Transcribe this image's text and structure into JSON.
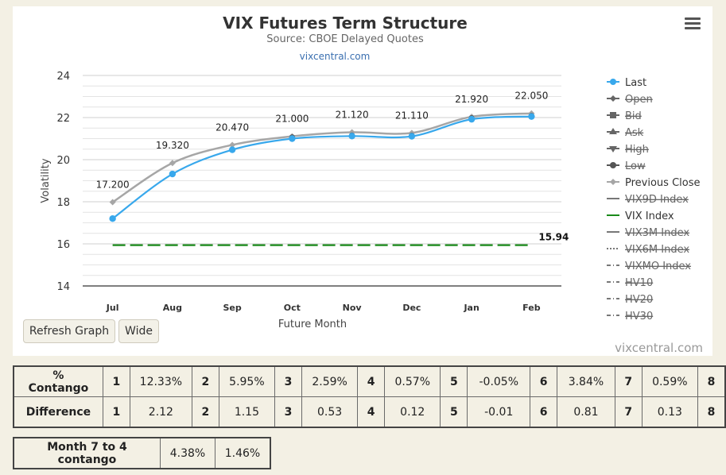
{
  "chart_data": {
    "type": "line",
    "title": "VIX Futures Term Structure",
    "subtitle": "Source: CBOE Delayed Quotes",
    "source_link": "vixcentral.com",
    "xlabel": "Future Month",
    "ylabel": "Volatility",
    "categories": [
      "Jul",
      "Aug",
      "Sep",
      "Oct",
      "Nov",
      "Dec",
      "Jan",
      "Feb"
    ],
    "ylim": [
      14,
      24
    ],
    "yticks": [
      "14",
      "16",
      "18",
      "20",
      "22",
      "24"
    ],
    "grid": true,
    "legend_position": "right",
    "series": [
      {
        "name": "Last",
        "values": [
          17.2,
          19.32,
          20.47,
          21.0,
          21.12,
          21.11,
          21.92,
          22.05
        ],
        "labels": [
          "17.200",
          "19.320",
          "20.470",
          "21.000",
          "21.120",
          "21.110",
          "21.920",
          "22.050"
        ],
        "color": "#38a8ec"
      },
      {
        "name": "Previous Close",
        "values": [
          17.98,
          19.84,
          20.7,
          21.11,
          21.3,
          21.27,
          22.04,
          22.2
        ],
        "color": "#a6a6a6"
      },
      {
        "name": "Low",
        "values": [
          null,
          null,
          null,
          21.07,
          21.16,
          21.15,
          21.98,
          22.09
        ],
        "color": "#555555"
      },
      {
        "name": "VIX Index",
        "value": 15.94,
        "label": "15.94",
        "color": "#1a8a1a"
      }
    ],
    "legend": [
      {
        "name": "Last",
        "marker": "dot",
        "line": "solid",
        "color": "#38a8ec",
        "struck": false
      },
      {
        "name": "Open",
        "marker": "diamond",
        "line": "solid",
        "color": "#666666",
        "struck": true
      },
      {
        "name": "Bid",
        "marker": "square",
        "line": "solid",
        "color": "#666666",
        "struck": true
      },
      {
        "name": "Ask",
        "marker": "triangle",
        "line": "solid",
        "color": "#666666",
        "struck": true
      },
      {
        "name": "High",
        "marker": "triangle-down",
        "line": "solid",
        "color": "#666666",
        "struck": true
      },
      {
        "name": "Low",
        "marker": "dot",
        "line": "solid",
        "color": "#555555",
        "struck": true
      },
      {
        "name": "Previous Close",
        "marker": "diamond",
        "line": "solid",
        "color": "#a6a6a6",
        "struck": false
      },
      {
        "name": "VIX9D Index",
        "marker": "none",
        "line": "solid",
        "color": "#777777",
        "struck": true
      },
      {
        "name": "VIX Index",
        "marker": "none",
        "line": "solid",
        "color": "#1a8a1a",
        "struck": false
      },
      {
        "name": "VIX3M Index",
        "marker": "none",
        "line": "solid",
        "color": "#777777",
        "struck": true
      },
      {
        "name": "VIX6M Index",
        "marker": "none",
        "line": "dotted",
        "color": "#777777",
        "struck": true
      },
      {
        "name": "VIXMO Index",
        "marker": "none",
        "line": "dashdot",
        "color": "#777777",
        "struck": true
      },
      {
        "name": "HV10",
        "marker": "none",
        "line": "dashdot",
        "color": "#777777",
        "struck": true
      },
      {
        "name": "HV20",
        "marker": "none",
        "line": "dashdot",
        "color": "#777777",
        "struck": true
      },
      {
        "name": "HV30",
        "marker": "none",
        "line": "dashdot",
        "color": "#777777",
        "struck": true
      }
    ]
  },
  "buttons": {
    "refresh": "Refresh Graph",
    "wide": "Wide"
  },
  "watermark": "vixcentral.com",
  "contango_table": {
    "rows": [
      {
        "label": "% Contango",
        "cells": [
          "1",
          "12.33%",
          "2",
          "5.95%",
          "3",
          "2.59%",
          "4",
          "0.57%",
          "5",
          "-0.05%",
          "6",
          "3.84%",
          "7",
          "0.59%",
          "8"
        ]
      },
      {
        "label": "Difference",
        "cells": [
          "1",
          "2.12",
          "2",
          "1.15",
          "3",
          "0.53",
          "4",
          "0.12",
          "5",
          "-0.01",
          "6",
          "0.81",
          "7",
          "0.13",
          "8"
        ]
      }
    ]
  },
  "month_table": {
    "label": "Month 7 to 4 contango",
    "values": [
      "4.38%",
      "1.46%"
    ]
  }
}
